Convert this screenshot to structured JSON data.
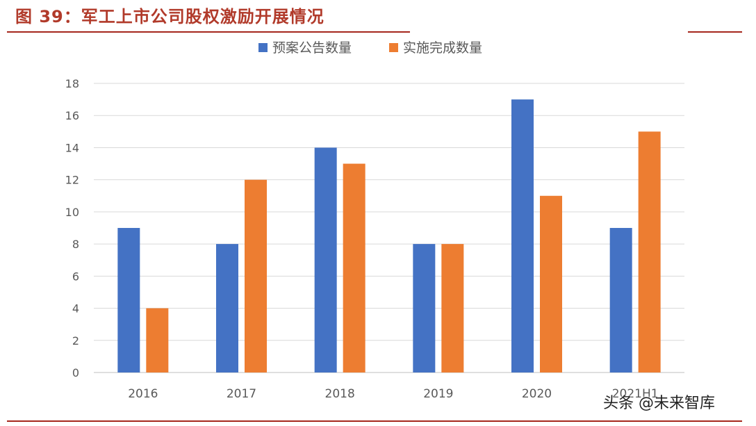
{
  "figure": {
    "title": "图 39：军工上市公司股权激励开展情况",
    "watermark": "头条 @未来智库"
  },
  "colors": {
    "title": "#b13a2a",
    "rule": "#a5261c",
    "series_blue": "#4472c4",
    "series_orange": "#ed7d31",
    "grid": "#d9d9d9",
    "axis_text": "#595959"
  },
  "chart_data": {
    "type": "bar",
    "categories": [
      "2016",
      "2017",
      "2018",
      "2019",
      "2020",
      "2021H1"
    ],
    "series": [
      {
        "name": "预案公告数量",
        "values": [
          9,
          8,
          14,
          8,
          17,
          9
        ]
      },
      {
        "name": "实施完成数量",
        "values": [
          4,
          12,
          13,
          8,
          11,
          15
        ]
      }
    ],
    "yticks": [
      "0",
      "2",
      "4",
      "6",
      "8",
      "10",
      "12",
      "14",
      "16",
      "18"
    ],
    "ylim": [
      0,
      18
    ],
    "grid": true,
    "legend": "top-center",
    "xlabel": "",
    "ylabel": ""
  }
}
